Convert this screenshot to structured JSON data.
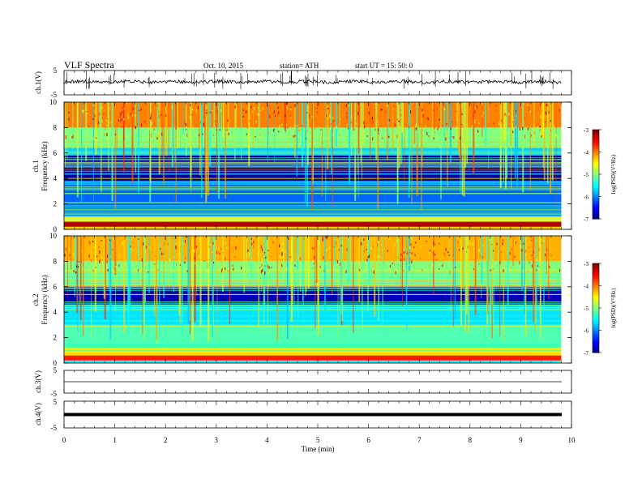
{
  "header": {
    "title": "VLF  Spectra",
    "date": "Oct. 10, 2015",
    "station": "station= ATH",
    "start": "start  UT  =    15: 50: 0"
  },
  "chart_data": [
    {
      "type": "line",
      "panel": "ch1-waveform",
      "ylabel": "ch.1(V)",
      "ylim": [
        -5,
        5
      ],
      "yticks": [
        "5",
        "-5"
      ],
      "xlim": [
        0,
        10
      ],
      "baseline_value": 0
    },
    {
      "type": "heatmap",
      "panel": "ch1-spectrogram",
      "ylabel_channel": "ch.1",
      "ylabel": "Frequency  (kHz)",
      "ylim": [
        0,
        10
      ],
      "yticks": [
        "0",
        "2",
        "4",
        "6",
        "8",
        "10"
      ],
      "xlim": [
        0,
        9.8
      ],
      "colorbar": {
        "label": "log(PSD)(V²/Hz)",
        "range": [
          -7,
          -3
        ],
        "ticks": [
          "-3",
          "-4",
          "-5",
          "-6",
          "-7"
        ]
      },
      "bands_kHz": [
        {
          "from": 8.0,
          "to": 10.0,
          "level": -4.0
        },
        {
          "from": 6.4,
          "to": 8.0,
          "level": -5.0
        },
        {
          "from": 5.8,
          "to": 6.4,
          "level": -5.7
        },
        {
          "from": 3.8,
          "to": 5.8,
          "level": -6.9
        },
        {
          "from": 3.5,
          "to": 3.8,
          "level": -5.8
        },
        {
          "from": 1.8,
          "to": 3.5,
          "level": -6.1
        },
        {
          "from": 1.0,
          "to": 1.8,
          "level": -5.9
        },
        {
          "from": 0.6,
          "to": 1.0,
          "level": -4.6
        },
        {
          "from": 0.2,
          "to": 0.6,
          "level": -3.2
        },
        {
          "from": 0.0,
          "to": 0.2,
          "level": -4.2
        }
      ]
    },
    {
      "type": "heatmap",
      "panel": "ch2-spectrogram",
      "ylabel_channel": "ch.2",
      "ylabel": "Frequency  (kHz)",
      "ylim": [
        0,
        10
      ],
      "yticks": [
        "0",
        "2",
        "4",
        "6",
        "8",
        "10"
      ],
      "xlim": [
        0,
        9.8
      ],
      "colorbar": {
        "label": "log(PSD)(V²/Hz)",
        "range": [
          -7,
          -3
        ],
        "ticks": [
          "-3",
          "-4",
          "-5",
          "-6",
          "-7"
        ]
      },
      "bands_kHz": [
        {
          "from": 8.0,
          "to": 10.0,
          "level": -4.2
        },
        {
          "from": 6.0,
          "to": 8.0,
          "level": -5.0
        },
        {
          "from": 4.6,
          "to": 6.0,
          "level": -6.8
        },
        {
          "from": 3.0,
          "to": 4.6,
          "level": -5.6
        },
        {
          "from": 1.2,
          "to": 3.0,
          "level": -5.2
        },
        {
          "from": 0.6,
          "to": 1.2,
          "level": -4.4
        },
        {
          "from": 0.2,
          "to": 0.6,
          "level": -3.6
        },
        {
          "from": 0.0,
          "to": 0.2,
          "level": -5.5
        }
      ]
    },
    {
      "type": "line",
      "panel": "ch3-waveform",
      "ylabel": "ch.3(V)",
      "ylim": [
        -5,
        5
      ],
      "yticks": [
        "5",
        "-5"
      ],
      "xlim": [
        0,
        10
      ],
      "baseline_value": 0
    },
    {
      "type": "line",
      "panel": "ch4-waveform",
      "ylabel": "ch.4(V)",
      "ylim": [
        -5,
        5
      ],
      "yticks": [
        "5",
        "-5"
      ],
      "xlim": [
        0,
        10
      ],
      "baseline_value": 0
    }
  ],
  "xaxis": {
    "label": "Time  (min)",
    "ticks": [
      "0",
      "1",
      "2",
      "3",
      "4",
      "5",
      "6",
      "7",
      "8",
      "9",
      "10"
    ],
    "range": [
      0,
      10
    ]
  }
}
